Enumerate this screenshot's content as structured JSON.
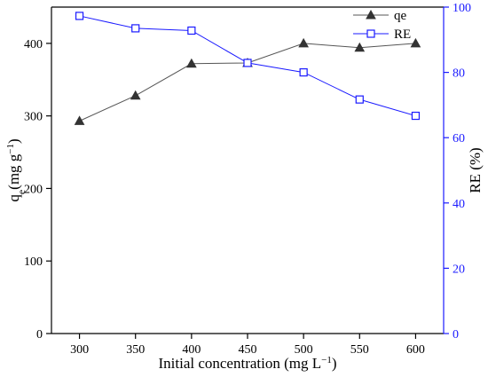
{
  "chart_data": {
    "type": "line",
    "x": [
      300,
      350,
      400,
      450,
      500,
      550,
      600
    ],
    "xlim": [
      275,
      625
    ],
    "x_ticks": [
      300,
      350,
      400,
      450,
      500,
      550,
      600
    ],
    "xlabel": "Initial concentration (mg L−1)",
    "ylabel_left": "qe(mg g−1)",
    "ylabel_right": "RE (%)",
    "ylim_left": [
      0,
      450
    ],
    "y_ticks_left": [
      0,
      100,
      200,
      300,
      400
    ],
    "ylim_right": [
      0,
      100
    ],
    "y_ticks_right": [
      0,
      20,
      40,
      60,
      80,
      100
    ],
    "grid": false,
    "legend_position": "top-right",
    "series": [
      {
        "name": "qe",
        "axis": "left",
        "marker": "filled-triangle",
        "color": "#555555",
        "markerColor": "#333333",
        "values": [
          293,
          328,
          372,
          373,
          400,
          394,
          400
        ]
      },
      {
        "name": "RE",
        "axis": "right",
        "marker": "open-square",
        "color": "#1a1aff",
        "markerColor": "#1a1aff",
        "values": [
          97.3,
          93.5,
          92.8,
          82.9,
          80.0,
          71.7,
          66.7
        ]
      }
    ]
  }
}
